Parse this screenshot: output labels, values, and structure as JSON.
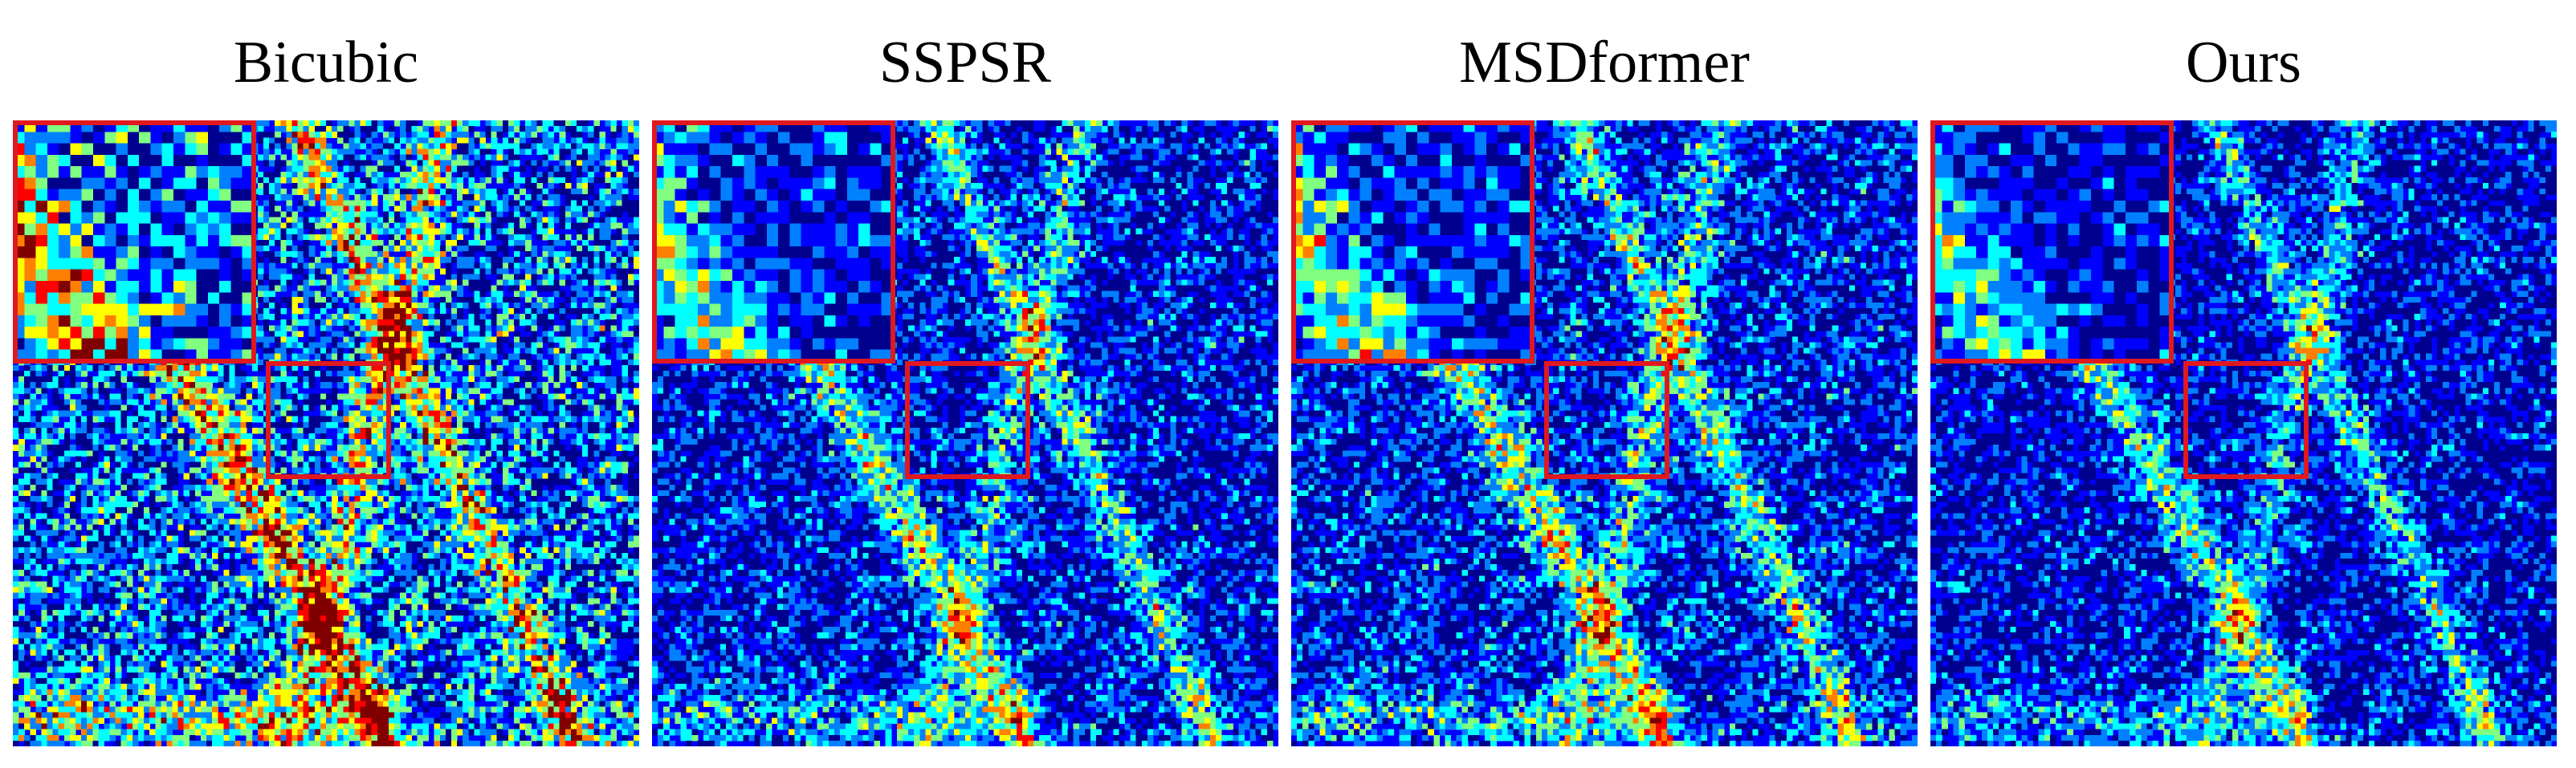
{
  "panels": [
    {
      "title": "Bicubic"
    },
    {
      "title": "SSPSR"
    },
    {
      "title": "MSDformer"
    },
    {
      "title": "Ours"
    }
  ],
  "colors": {
    "zoom_box": "#e0191f",
    "colormap": [
      "#00008f",
      "#0000ff",
      "#0080ff",
      "#00ffff",
      "#80ff80",
      "#ffff00",
      "#ff8000",
      "#ff0000",
      "#800000"
    ]
  }
}
